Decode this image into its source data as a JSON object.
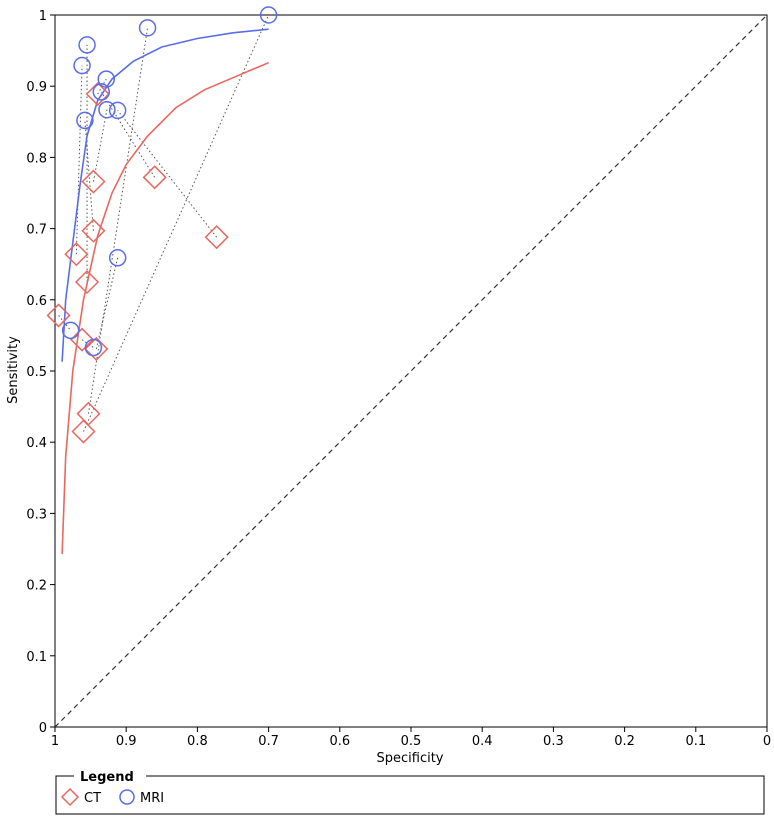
{
  "chart_data": {
    "type": "scatter",
    "xlabel": "Specificity",
    "ylabel": "Sensitivity",
    "xlim": [
      1,
      0
    ],
    "ylim": [
      0,
      1
    ],
    "x_ticks": [
      "1",
      "0.9",
      "0.8",
      "0.7",
      "0.6",
      "0.5",
      "0.4",
      "0.3",
      "0.2",
      "0.1",
      "0"
    ],
    "y_ticks": [
      "0",
      "0.1",
      "0.2",
      "0.3",
      "0.4",
      "0.5",
      "0.6",
      "0.7",
      "0.8",
      "0.9",
      "1"
    ],
    "grid": false,
    "diagonal": "dashed line from (1,0) to (0,1)",
    "legend": {
      "title": "Legend",
      "placement": "bottom",
      "entries": [
        "CT",
        "MRI"
      ]
    },
    "series": [
      {
        "name": "CT",
        "marker": "diamond",
        "color": "#e8675e",
        "points": [
          {
            "specificity": 0.995,
            "sensitivity": 0.578
          },
          {
            "specificity": 0.97,
            "sensitivity": 0.664
          },
          {
            "specificity": 0.955,
            "sensitivity": 0.625
          },
          {
            "specificity": 0.946,
            "sensitivity": 0.697
          },
          {
            "specificity": 0.946,
            "sensitivity": 0.766
          },
          {
            "specificity": 0.94,
            "sensitivity": 0.889
          },
          {
            "specificity": 0.86,
            "sensitivity": 0.772
          },
          {
            "specificity": 0.773,
            "sensitivity": 0.688
          },
          {
            "specificity": 0.942,
            "sensitivity": 0.531
          },
          {
            "specificity": 0.962,
            "sensitivity": 0.544
          },
          {
            "specificity": 0.953,
            "sensitivity": 0.44
          },
          {
            "specificity": 0.96,
            "sensitivity": 0.415
          }
        ],
        "curve": [
          {
            "specificity": 0.99,
            "sensitivity": 0.243
          },
          {
            "specificity": 0.985,
            "sensitivity": 0.38
          },
          {
            "specificity": 0.975,
            "sensitivity": 0.5
          },
          {
            "specificity": 0.96,
            "sensitivity": 0.6
          },
          {
            "specificity": 0.94,
            "sensitivity": 0.69
          },
          {
            "specificity": 0.92,
            "sensitivity": 0.75
          },
          {
            "specificity": 0.9,
            "sensitivity": 0.79
          },
          {
            "specificity": 0.87,
            "sensitivity": 0.83
          },
          {
            "specificity": 0.83,
            "sensitivity": 0.87
          },
          {
            "specificity": 0.79,
            "sensitivity": 0.895
          },
          {
            "specificity": 0.75,
            "sensitivity": 0.912
          },
          {
            "specificity": 0.7,
            "sensitivity": 0.933
          }
        ]
      },
      {
        "name": "MRI",
        "marker": "circle",
        "color": "#5a6de8",
        "points": [
          {
            "specificity": 0.7,
            "sensitivity": 1.0
          },
          {
            "specificity": 0.87,
            "sensitivity": 0.982
          },
          {
            "specificity": 0.955,
            "sensitivity": 0.958
          },
          {
            "specificity": 0.962,
            "sensitivity": 0.929
          },
          {
            "specificity": 0.928,
            "sensitivity": 0.91
          },
          {
            "specificity": 0.935,
            "sensitivity": 0.892
          },
          {
            "specificity": 0.927,
            "sensitivity": 0.867
          },
          {
            "specificity": 0.912,
            "sensitivity": 0.866
          },
          {
            "specificity": 0.958,
            "sensitivity": 0.852
          },
          {
            "specificity": 0.912,
            "sensitivity": 0.659
          },
          {
            "specificity": 0.978,
            "sensitivity": 0.557
          },
          {
            "specificity": 0.946,
            "sensitivity": 0.533
          }
        ],
        "curve": [
          {
            "specificity": 0.99,
            "sensitivity": 0.513
          },
          {
            "specificity": 0.985,
            "sensitivity": 0.6
          },
          {
            "specificity": 0.975,
            "sensitivity": 0.68
          },
          {
            "specificity": 0.965,
            "sensitivity": 0.76
          },
          {
            "specificity": 0.955,
            "sensitivity": 0.83
          },
          {
            "specificity": 0.94,
            "sensitivity": 0.88
          },
          {
            "specificity": 0.92,
            "sensitivity": 0.91
          },
          {
            "specificity": 0.89,
            "sensitivity": 0.935
          },
          {
            "specificity": 0.85,
            "sensitivity": 0.955
          },
          {
            "specificity": 0.8,
            "sensitivity": 0.967
          },
          {
            "specificity": 0.75,
            "sensitivity": 0.975
          },
          {
            "specificity": 0.7,
            "sensitivity": 0.98
          }
        ]
      }
    ],
    "pairs": [
      [
        0,
        10
      ],
      [
        1,
        3
      ],
      [
        2,
        2
      ],
      [
        3,
        8
      ],
      [
        4,
        6
      ],
      [
        5,
        4
      ],
      [
        6,
        5
      ],
      [
        7,
        7
      ],
      [
        8,
        9
      ],
      [
        9,
        11
      ],
      [
        10,
        1
      ],
      [
        11,
        0
      ]
    ]
  }
}
